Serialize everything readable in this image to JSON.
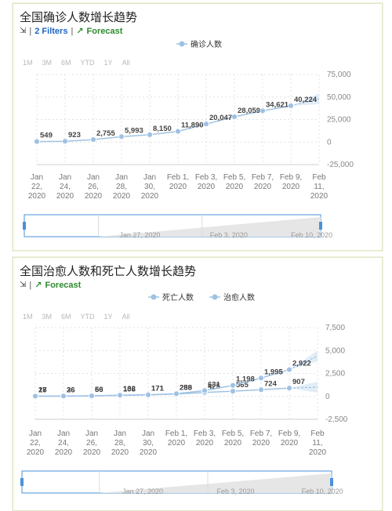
{
  "charts": [
    {
      "title": "全国确诊人数增长趋势",
      "filters_label": "2 Filters",
      "forecast_label": "Forecast"
    },
    {
      "title": "全国治愈人数和死亡人数增长趋势",
      "forecast_label": "Forecast"
    }
  ],
  "range_buttons": [
    "1M",
    "3M",
    "6M",
    "YTD",
    "1Y",
    "All"
  ],
  "colors": {
    "series": "#9fc2e4",
    "link": "#1c66c4",
    "forecast": "#2d8a2d",
    "navigator_border": "#4a90d9"
  },
  "chart_data": [
    {
      "type": "line",
      "x_ticks": [
        [
          "Jan",
          "22,",
          "2020"
        ],
        [
          "Jan",
          "24,",
          "2020"
        ],
        [
          "Jan",
          "26,",
          "2020"
        ],
        [
          "Jan",
          "28,",
          "2020"
        ],
        [
          "Jan",
          "30,",
          "2020"
        ],
        [
          "Feb 1,",
          "2020"
        ],
        [
          "Feb 3,",
          "2020"
        ],
        [
          "Feb 5,",
          "2020"
        ],
        [
          "Feb 7,",
          "2020"
        ],
        [
          "Feb 9,",
          "2020"
        ],
        [
          "Feb",
          "11,",
          "2020"
        ]
      ],
      "y_ticks": [
        "75,000",
        "50,000",
        "25,000",
        "0",
        "-25,000"
      ],
      "y_tick_values": [
        75000,
        50000,
        25000,
        0,
        -25000
      ],
      "ylim": [
        -25000,
        75000
      ],
      "legend": [
        "确诊人数"
      ],
      "legend_position": "top-center",
      "series": [
        {
          "name": "确诊人数",
          "points": [
            {
              "x": 0,
              "y": 549,
              "label": "549"
            },
            {
              "x": 2,
              "y": 923,
              "label": "923"
            },
            {
              "x": 4,
              "y": 2755,
              "label": "2,755"
            },
            {
              "x": 6,
              "y": 5993,
              "label": "5,993"
            },
            {
              "x": 8,
              "y": 8150,
              "label": "8,150"
            },
            {
              "x": 10,
              "y": 11890,
              "label": "11,890"
            },
            {
              "x": 12,
              "y": 20047,
              "label": "20,047"
            },
            {
              "x": 14,
              "y": 28059,
              "label": "28,059"
            },
            {
              "x": 16,
              "y": 34621,
              "label": "34,621"
            },
            {
              "x": 18,
              "y": 40224,
              "label": "40,224"
            }
          ]
        }
      ],
      "forecast": [
        {
          "x": 18,
          "y": 40224
        },
        {
          "x": 20,
          "y": 48000
        }
      ],
      "navigator_labels": [
        "Jan 27, 2020",
        "Feb 3, 2020",
        "Feb 10, 2020"
      ]
    },
    {
      "type": "line",
      "x_ticks": [
        [
          "Jan",
          "22,",
          "2020"
        ],
        [
          "Jan",
          "24,",
          "2020"
        ],
        [
          "Jan",
          "26,",
          "2020"
        ],
        [
          "Jan",
          "28,",
          "2020"
        ],
        [
          "Jan",
          "30,",
          "2020"
        ],
        [
          "Feb 1,",
          "2020"
        ],
        [
          "Feb 3,",
          "2020"
        ],
        [
          "Feb 5,",
          "2020"
        ],
        [
          "Feb 7,",
          "2020"
        ],
        [
          "Feb 9,",
          "2020"
        ],
        [
          "Feb",
          "11,",
          "2020"
        ]
      ],
      "y_ticks": [
        "7,500",
        "5,000",
        "2,500",
        "0",
        "-2,500"
      ],
      "y_tick_values": [
        7500,
        5000,
        2500,
        0,
        -2500
      ],
      "ylim": [
        -2500,
        7500
      ],
      "legend": [
        "死亡人数",
        "治愈人数"
      ],
      "legend_position": "top-center",
      "series": [
        {
          "name": "死亡人数",
          "points": [
            {
              "x": 0,
              "y": 17,
              "label": "17"
            },
            {
              "x": 2,
              "y": 26,
              "label": "26"
            },
            {
              "x": 4,
              "y": 56,
              "label": "56"
            },
            {
              "x": 6,
              "y": 106,
              "label": "106"
            },
            {
              "x": 8,
              "y": 171,
              "label": "171"
            },
            {
              "x": 10,
              "y": 259,
              "label": "259"
            },
            {
              "x": 12,
              "y": 425,
              "label": "425"
            },
            {
              "x": 14,
              "y": 565,
              "label": "565"
            },
            {
              "x": 16,
              "y": 724,
              "label": "724"
            },
            {
              "x": 18,
              "y": 907,
              "label": "907"
            }
          ]
        },
        {
          "name": "治愈人数",
          "points": [
            {
              "x": 0,
              "y": 28,
              "label": "28"
            },
            {
              "x": 2,
              "y": 36,
              "label": "36"
            },
            {
              "x": 4,
              "y": 60,
              "label": "60"
            },
            {
              "x": 6,
              "y": 132,
              "label": "132"
            },
            {
              "x": 8,
              "y": 171,
              "label": "171"
            },
            {
              "x": 10,
              "y": 288,
              "label": "288"
            },
            {
              "x": 12,
              "y": 631,
              "label": "631"
            },
            {
              "x": 14,
              "y": 1198,
              "label": "1,198"
            },
            {
              "x": 16,
              "y": 1995,
              "label": "1,995"
            },
            {
              "x": 18,
              "y": 2922,
              "label": "2,922"
            }
          ]
        }
      ],
      "forecast_series": [
        [
          {
            "x": 18,
            "y": 907
          },
          {
            "x": 20,
            "y": 1000
          }
        ],
        [
          {
            "x": 18,
            "y": 2922
          },
          {
            "x": 20,
            "y": 4400
          }
        ]
      ],
      "navigator_labels": [
        "Jan 27, 2020",
        "Feb 3, 2020",
        "Feb 10, 2020"
      ]
    }
  ]
}
